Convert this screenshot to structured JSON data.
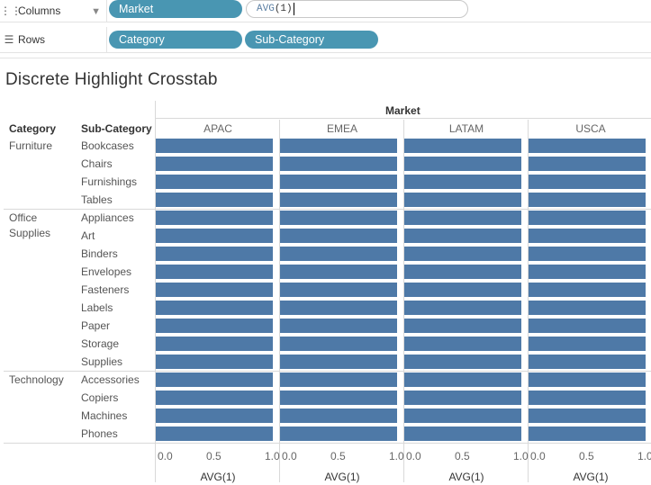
{
  "shelves": {
    "columns": {
      "label": "Columns",
      "icon": "columns-icon",
      "pills": [
        "Market"
      ],
      "input": {
        "func": "AVG",
        "arg": "(1)"
      }
    },
    "rows": {
      "label": "Rows",
      "icon": "rows-icon",
      "pills": [
        "Category",
        "Sub-Category"
      ]
    }
  },
  "view": {
    "title": "Discrete Highlight Crosstab"
  },
  "colors": {
    "bar": "#4e79a7",
    "pill": "#4996b2"
  },
  "chart_data": {
    "type": "bar",
    "orientation": "horizontal",
    "title": "Discrete Highlight Crosstab",
    "column_header": "Market",
    "row_headers": [
      "Category",
      "Sub-Category"
    ],
    "markets": [
      "APAC",
      "EMEA",
      "LATAM",
      "USCA"
    ],
    "categories": [
      {
        "name": "Furniture",
        "sub": [
          "Bookcases",
          "Chairs",
          "Furnishings",
          "Tables"
        ]
      },
      {
        "name": "Office Supplies",
        "sub": [
          "Appliances",
          "Art",
          "Binders",
          "Envelopes",
          "Fasteners",
          "Labels",
          "Paper",
          "Storage",
          "Supplies"
        ]
      },
      {
        "name": "Technology",
        "sub": [
          "Accessories",
          "Copiers",
          "Machines",
          "Phones"
        ]
      }
    ],
    "value": 1.0,
    "xlim": [
      0,
      1
    ],
    "xticks": [
      "0.0",
      "0.5",
      "1.0"
    ],
    "xlabel": "AVG(1)"
  }
}
